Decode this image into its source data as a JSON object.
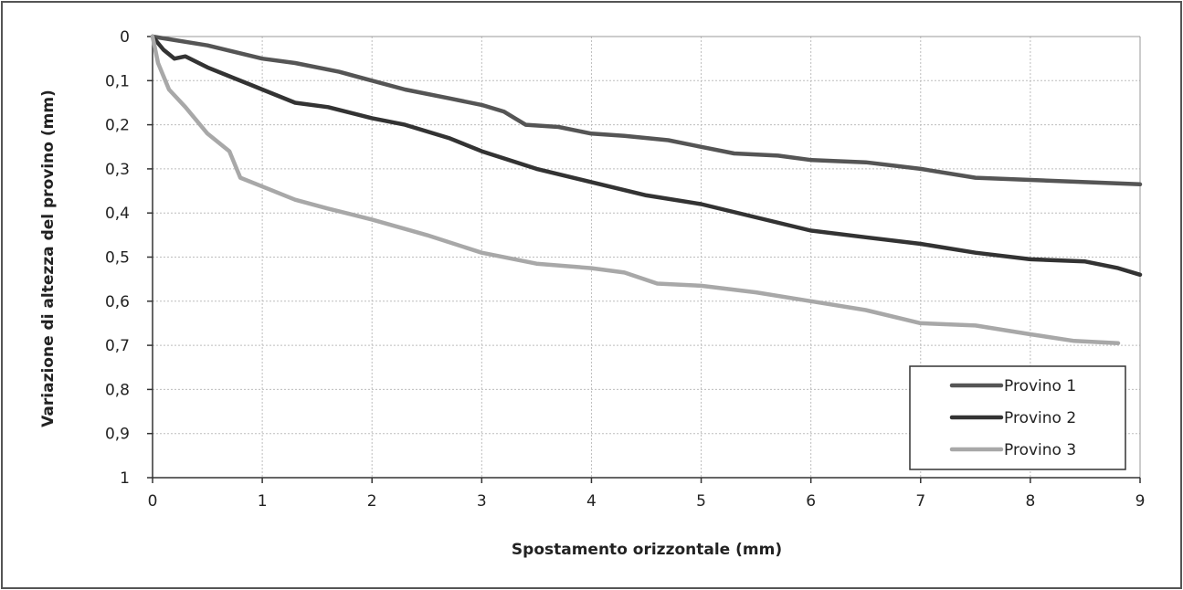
{
  "chart_data": {
    "type": "line",
    "title": "",
    "xlabel": "Spostamento orizzontale (mm)",
    "ylabel": "Variazione di altezza del provino (mm)",
    "xlim": [
      0,
      9
    ],
    "ylim": [
      0,
      1
    ],
    "y_inverted": true,
    "grid": true,
    "legend_position": "bottom-right",
    "x_ticks": [
      "0",
      "1",
      "2",
      "3",
      "4",
      "5",
      "6",
      "7",
      "8",
      "9"
    ],
    "y_ticks": [
      "0",
      "0,1",
      "0,2",
      "0,3",
      "0,4",
      "0,5",
      "0,6",
      "0,7",
      "0,8",
      "0,9",
      "1"
    ],
    "series": [
      {
        "name": "Provino 1",
        "color": "#555555",
        "x": [
          0,
          0.5,
          1,
          1.3,
          1.7,
          2,
          2.3,
          2.7,
          3,
          3.2,
          3.4,
          3.7,
          4,
          4.3,
          4.7,
          5,
          5.3,
          5.7,
          6,
          6.5,
          7,
          7.5,
          8,
          8.5,
          9
        ],
        "y": [
          0,
          0.02,
          0.05,
          0.06,
          0.08,
          0.1,
          0.12,
          0.14,
          0.155,
          0.17,
          0.2,
          0.205,
          0.22,
          0.225,
          0.235,
          0.25,
          0.265,
          0.27,
          0.28,
          0.285,
          0.3,
          0.32,
          0.325,
          0.33,
          0.335
        ]
      },
      {
        "name": "Provino 2",
        "color": "#333333",
        "x": [
          0,
          0.1,
          0.2,
          0.3,
          0.5,
          0.7,
          0.9,
          1,
          1.3,
          1.6,
          2,
          2.3,
          2.7,
          3,
          3.5,
          4,
          4.5,
          5,
          5.5,
          6,
          6.5,
          7,
          7.5,
          8,
          8.5,
          8.8,
          9
        ],
        "y": [
          0,
          0.03,
          0.05,
          0.045,
          0.07,
          0.09,
          0.11,
          0.12,
          0.15,
          0.16,
          0.185,
          0.2,
          0.23,
          0.26,
          0.3,
          0.33,
          0.36,
          0.38,
          0.41,
          0.44,
          0.455,
          0.47,
          0.49,
          0.505,
          0.51,
          0.525,
          0.54
        ]
      },
      {
        "name": "Provino 3",
        "color": "#a8a8a8",
        "x": [
          0,
          0.05,
          0.15,
          0.3,
          0.5,
          0.7,
          0.8,
          1,
          1.3,
          1.6,
          2,
          2.5,
          3,
          3.5,
          4,
          4.3,
          4.6,
          5,
          5.5,
          6,
          6.5,
          7,
          7.5,
          8,
          8.4,
          8.8
        ],
        "y": [
          0,
          0.06,
          0.12,
          0.16,
          0.22,
          0.26,
          0.32,
          0.34,
          0.37,
          0.39,
          0.415,
          0.45,
          0.49,
          0.515,
          0.525,
          0.535,
          0.56,
          0.565,
          0.58,
          0.6,
          0.62,
          0.65,
          0.655,
          0.675,
          0.69,
          0.695
        ]
      }
    ]
  },
  "colors": {
    "grid": "#bdbdbd",
    "axis": "#333333",
    "frame": "#222222"
  }
}
